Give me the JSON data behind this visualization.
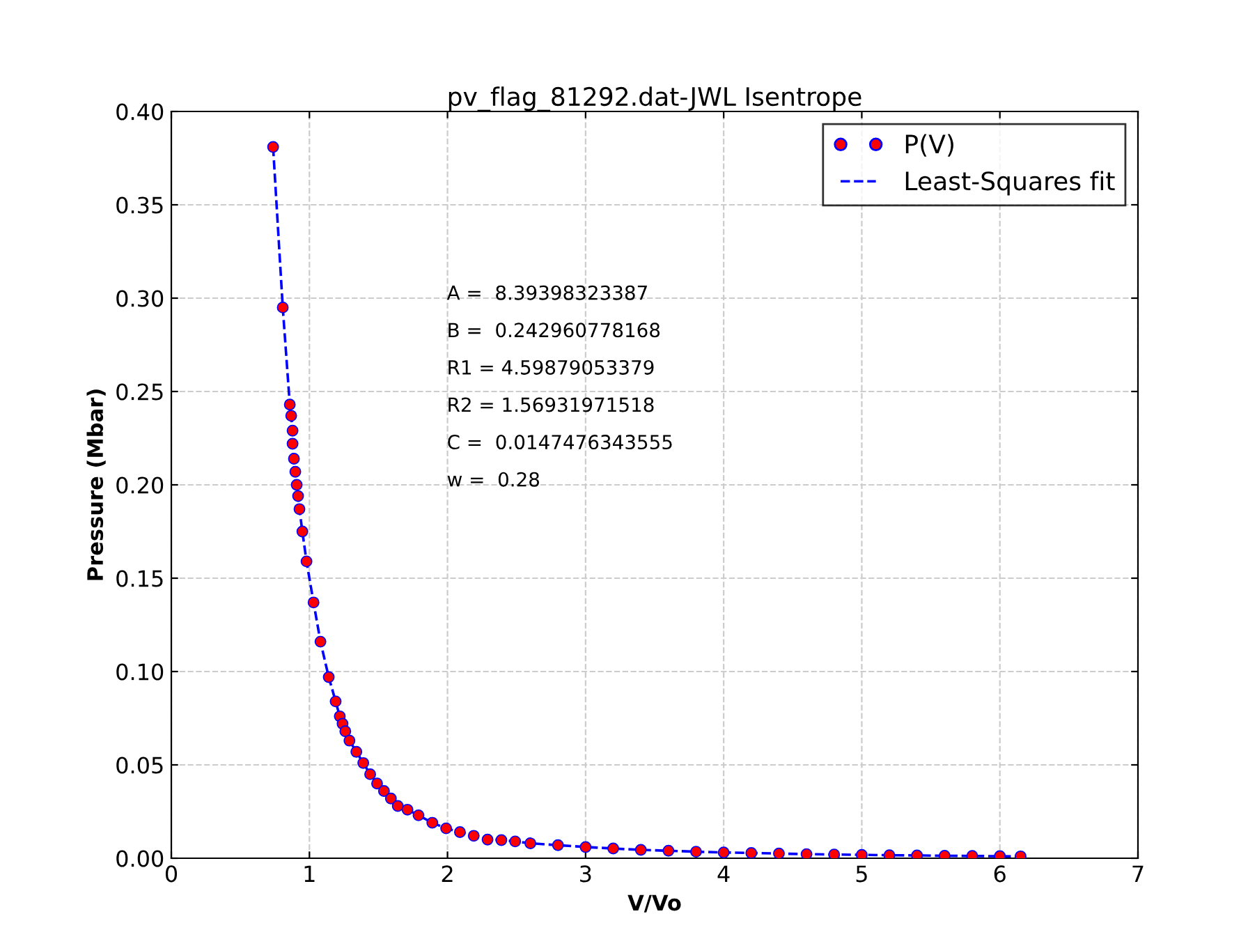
{
  "chart_data": {
    "type": "scatter",
    "title": "pv_flag_81292.dat-JWL Isentrope",
    "xlabel": "V/Vo",
    "ylabel": "Pressure (Mbar)",
    "x": [
      0.737,
      0.807,
      0.858,
      0.868,
      0.878,
      0.878,
      0.888,
      0.898,
      0.908,
      0.918,
      0.928,
      0.949,
      0.979,
      1.03,
      1.08,
      1.14,
      1.19,
      1.22,
      1.24,
      1.26,
      1.29,
      1.34,
      1.39,
      1.44,
      1.49,
      1.54,
      1.59,
      1.64,
      1.71,
      1.79,
      1.89,
      1.99,
      2.09,
      2.19,
      2.29,
      2.39,
      2.49,
      2.6,
      2.8,
      3.0,
      3.2,
      3.4,
      3.6,
      3.8,
      4.0,
      4.2,
      4.4,
      4.6,
      4.8,
      5.0,
      5.2,
      5.4,
      5.6,
      5.8,
      6.0,
      6.15
    ],
    "series": [
      {
        "name": "P(V)",
        "color": "#ff0000",
        "marker": "circle",
        "values": [
          0.381,
          0.295,
          0.243,
          0.237,
          0.229,
          0.222,
          0.214,
          0.207,
          0.2,
          0.194,
          0.187,
          0.175,
          0.159,
          0.137,
          0.116,
          0.097,
          0.084,
          0.076,
          0.072,
          0.068,
          0.063,
          0.057,
          0.051,
          0.045,
          0.04,
          0.036,
          0.032,
          0.028,
          0.026,
          0.023,
          0.019,
          0.016,
          0.014,
          0.012,
          0.01,
          0.0097,
          0.009,
          0.008,
          0.007,
          0.006,
          0.0052,
          0.0045,
          0.004,
          0.0035,
          0.0031,
          0.0028,
          0.0025,
          0.0022,
          0.002,
          0.0018,
          0.0016,
          0.0015,
          0.0013,
          0.0012,
          0.0011,
          0.001
        ]
      },
      {
        "name": "Least-Squares fit",
        "type": "line",
        "color": "#0000ff",
        "line_style": "dashed",
        "values": [
          0.381,
          0.295,
          0.243,
          0.237,
          0.229,
          0.222,
          0.214,
          0.207,
          0.2,
          0.194,
          0.187,
          0.175,
          0.159,
          0.137,
          0.116,
          0.097,
          0.084,
          0.076,
          0.072,
          0.068,
          0.063,
          0.057,
          0.051,
          0.045,
          0.04,
          0.036,
          0.032,
          0.028,
          0.026,
          0.023,
          0.019,
          0.016,
          0.014,
          0.012,
          0.01,
          0.0097,
          0.009,
          0.008,
          0.007,
          0.006,
          0.0052,
          0.0045,
          0.004,
          0.0035,
          0.0031,
          0.0028,
          0.0025,
          0.0022,
          0.002,
          0.0018,
          0.0016,
          0.0015,
          0.0013,
          0.0012,
          0.0011,
          0.001
        ]
      }
    ],
    "xlim": [
      0,
      7
    ],
    "xticks": [
      0,
      1,
      2,
      3,
      4,
      5,
      6,
      7
    ],
    "ylim": [
      0,
      0.4
    ],
    "yticks": [
      {
        "value": 0,
        "label": "0.00"
      },
      0.05,
      {
        "value": 0.1,
        "label": "0.10"
      },
      0.15,
      {
        "value": 0.2,
        "label": "0.20"
      },
      0.25,
      {
        "value": 0.3,
        "label": "0.30"
      },
      0.35,
      {
        "value": 0.4,
        "label": "0.40"
      }
    ],
    "annotations": [
      "A =  8.39398323387",
      "B =  0.242960778168",
      "R1 = 4.59879053379",
      "R2 = 1.56931971518",
      "C =  0.0147476343555",
      "w =  0.28"
    ],
    "grid": true,
    "legend": "top right"
  }
}
